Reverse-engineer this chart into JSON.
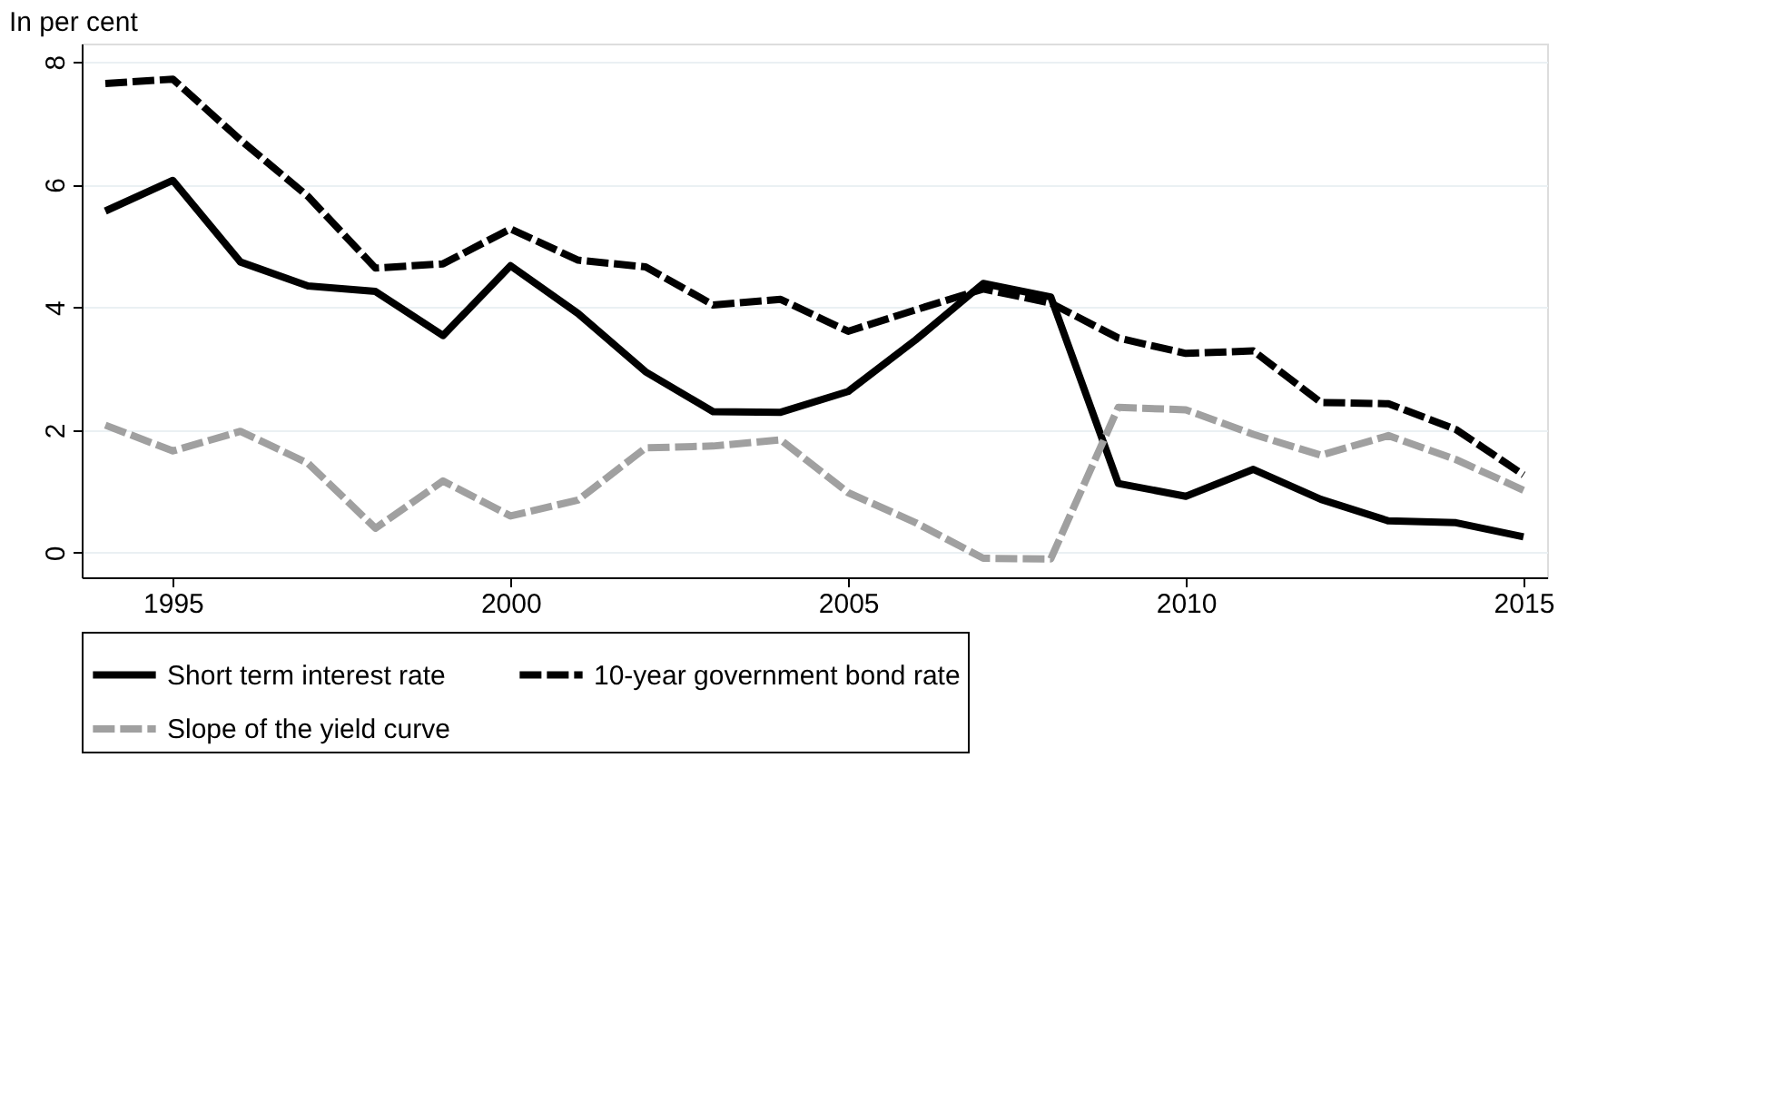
{
  "chart_data": {
    "type": "line",
    "title": "In per cent",
    "x": [
      1994,
      1995,
      1996,
      1997,
      1998,
      1999,
      2000,
      2001,
      2002,
      2003,
      2004,
      2005,
      2006,
      2007,
      2008,
      2009,
      2010,
      2011,
      2012,
      2013,
      2014,
      2015
    ],
    "series": [
      {
        "name": "Short term interest rate",
        "color": "#000000",
        "line_style": "solid",
        "values": [
          5.57,
          6.07,
          4.74,
          4.35,
          4.26,
          3.54,
          4.68,
          3.9,
          2.95,
          2.3,
          2.29,
          2.63,
          3.47,
          4.39,
          4.17,
          1.13,
          0.92,
          1.36,
          0.87,
          0.52,
          0.49,
          0.26
        ]
      },
      {
        "name": "10-year government bond rate",
        "color": "#000000",
        "line_style": "dashed",
        "values": [
          7.65,
          7.72,
          6.73,
          5.81,
          4.64,
          4.71,
          5.28,
          4.77,
          4.66,
          4.04,
          4.13,
          3.61,
          3.96,
          4.3,
          4.07,
          3.5,
          3.25,
          3.29,
          2.45,
          2.43,
          2.01,
          1.27
        ]
      },
      {
        "name": "Slope of the yield curve",
        "color": "#a0a0a0",
        "line_style": "dashed",
        "values": [
          2.08,
          1.66,
          1.98,
          1.46,
          0.4,
          1.17,
          0.6,
          0.86,
          1.71,
          1.74,
          1.84,
          0.98,
          0.49,
          -0.09,
          -0.1,
          2.37,
          2.33,
          1.93,
          1.59,
          1.91,
          1.52,
          1.02
        ]
      }
    ],
    "xlim": [
      1993.65,
      2015.35
    ],
    "xticks": [
      1995,
      2000,
      2005,
      2010,
      2015
    ],
    "ylim": [
      -0.4,
      8.3
    ],
    "yticks": [
      0,
      2,
      4,
      6,
      8
    ],
    "grid": "y",
    "legend": "bottom",
    "marker": "none"
  }
}
